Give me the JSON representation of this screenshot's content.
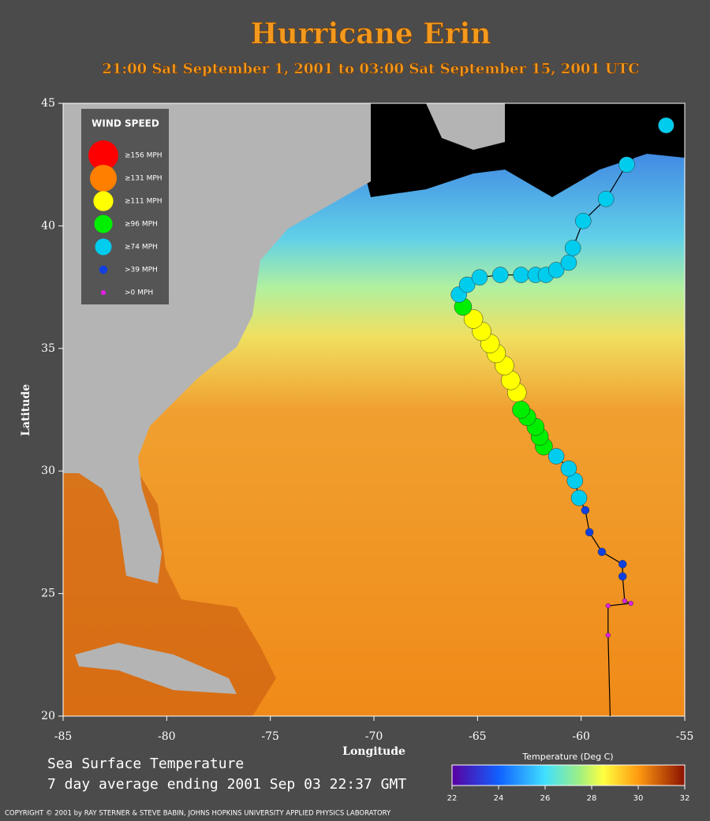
{
  "chart_data": {
    "type": "scatter",
    "title": "Hurricane Erin",
    "subtitle": "21:00 Sat September  1, 2001 to 03:00 Sat September 15, 2001  UTC",
    "x_label": "Longitude",
    "y_label": "Latitude",
    "xlim": [
      -85,
      -55
    ],
    "ylim": [
      20,
      45
    ],
    "xticks": [
      -85,
      -80,
      -75,
      -70,
      -65,
      -60,
      -55
    ],
    "yticks": [
      20,
      25,
      30,
      35,
      40,
      45
    ],
    "legend_title": "WIND SPEED",
    "legend": "upper left",
    "track": {
      "x": [
        -58.6,
        -58.7,
        -58.7,
        -57.6,
        -57.9,
        -58.0,
        -58.0,
        -59.0,
        -59.6,
        -59.8,
        -60.1,
        -60.3,
        -60.6,
        -61.2,
        -61.8,
        -62.0,
        -62.2,
        -62.6,
        -62.9,
        -63.1,
        -63.4,
        -63.7,
        -64.1,
        -64.4,
        -64.8,
        -65.2,
        -65.7,
        -65.9,
        -65.5,
        -64.9,
        -63.9,
        -62.9,
        -62.2,
        -61.7,
        -61.2,
        -60.6,
        -60.4,
        -59.9,
        -58.8,
        -57.8,
        -55.9
      ],
      "y": [
        20.0,
        23.3,
        24.5,
        24.6,
        24.7,
        25.7,
        26.2,
        26.7,
        27.5,
        28.4,
        28.9,
        29.6,
        30.1,
        30.6,
        31.0,
        31.4,
        31.8,
        32.2,
        32.5,
        33.2,
        33.7,
        34.3,
        34.8,
        35.2,
        35.7,
        36.2,
        36.7,
        37.2,
        37.6,
        37.9,
        38.0,
        38.0,
        38.0,
        38.0,
        38.2,
        38.5,
        39.1,
        40.2,
        41.1,
        42.5,
        44.1
      ]
    },
    "series": [
      {
        "name": "≥156 MPH",
        "color": "#ff0000",
        "x": [],
        "y": []
      },
      {
        "name": "≥131 MPH",
        "color": "#ff7f00",
        "x": [],
        "y": []
      },
      {
        "name": "≥111 MPH",
        "color": "#ffff00",
        "x": [
          -63.1,
          -63.4,
          -63.7,
          -64.1,
          -64.4,
          -64.8,
          -65.2
        ],
        "y": [
          33.2,
          33.7,
          34.3,
          34.8,
          35.2,
          35.7,
          36.2
        ]
      },
      {
        "name": "≥96 MPH",
        "color": "#00ee00",
        "x": [
          -61.8,
          -62.0,
          -62.2,
          -62.6,
          -62.9,
          -65.7
        ],
        "y": [
          31.0,
          31.4,
          31.8,
          32.2,
          32.5,
          36.7
        ]
      },
      {
        "name": "≥74 MPH",
        "color": "#00ccee",
        "x": [
          -60.1,
          -60.3,
          -60.6,
          -61.2,
          -65.9,
          -65.5,
          -64.9,
          -63.9,
          -62.9,
          -62.2,
          -61.7,
          -61.2,
          -60.6,
          -60.4,
          -59.9,
          -58.8,
          -57.8,
          -55.9
        ],
        "y": [
          28.9,
          29.6,
          30.1,
          30.6,
          37.2,
          37.6,
          37.9,
          38.0,
          38.0,
          38.0,
          38.0,
          38.2,
          38.5,
          39.1,
          40.2,
          41.1,
          42.5,
          44.1
        ]
      },
      {
        "name": ">39 MPH",
        "color": "#1040e0",
        "x": [
          -59.8,
          -59.6,
          -59.0,
          -58.0,
          -58.0
        ],
        "y": [
          28.4,
          27.5,
          26.7,
          26.2,
          25.7
        ]
      },
      {
        "name": ">0 MPH",
        "color": "#e020e0",
        "x": [
          -57.9,
          -57.6,
          -58.7,
          -58.7
        ],
        "y": [
          24.7,
          24.6,
          24.5,
          23.3
        ]
      }
    ],
    "caption_line1": "Sea Surface Temperature",
    "caption_line2": "7 day average ending 2001 Sep 03 22:37 GMT",
    "colorbar": {
      "label": "Temperature (Deg C)",
      "lim": [
        22,
        32
      ],
      "ticks": [
        22,
        24,
        26,
        28,
        30,
        32
      ]
    },
    "copyright": "COPYRIGHT © 2001 by RAY STERNER & STEVE BABIN, JOHNS HOPKINS UNIVERSITY APPLIED PHYSICS LABORATORY"
  }
}
